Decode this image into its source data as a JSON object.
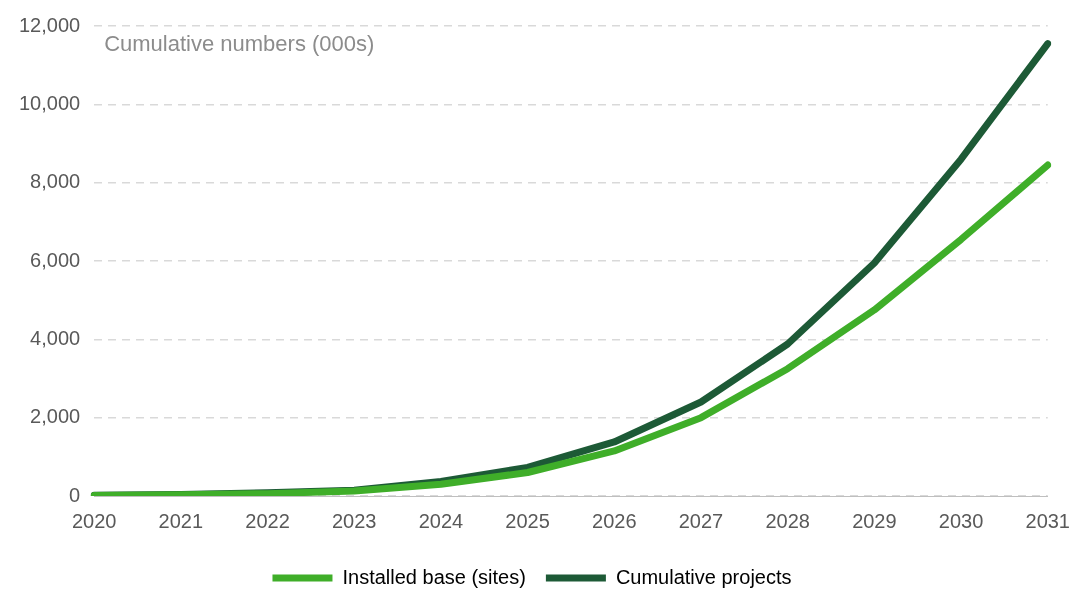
{
  "chart_data": {
    "type": "line",
    "title": "Cumulative numbers (000s)",
    "categories": [
      "2020",
      "2021",
      "2022",
      "2023",
      "2024",
      "2025",
      "2026",
      "2027",
      "2028",
      "2029",
      "2030",
      "2031"
    ],
    "series": [
      {
        "name": "Installed base (sites)",
        "color": "#3fae29",
        "values": [
          10,
          30,
          60,
          130,
          300,
          600,
          1150,
          2000,
          3250,
          4750,
          6550,
          8450
        ]
      },
      {
        "name": "Cumulative projects",
        "color": "#1d5a36",
        "values": [
          20,
          40,
          80,
          150,
          370,
          730,
          1380,
          2400,
          3880,
          5950,
          8600,
          11550
        ]
      }
    ],
    "ylim": [
      0,
      12000
    ],
    "yticks": [
      0,
      {
        "value": 2000,
        "label": "2,000"
      },
      {
        "value": 4000,
        "label": "4,000"
      },
      {
        "value": 6000,
        "label": "6,000"
      },
      {
        "value": 8000,
        "label": "8,000"
      },
      {
        "value": 10000,
        "label": "10,000"
      },
      {
        "value": 12000,
        "label": "12,000"
      }
    ],
    "grid": "y",
    "legend": "bottom",
    "marker": "none",
    "line_style": "solid"
  }
}
